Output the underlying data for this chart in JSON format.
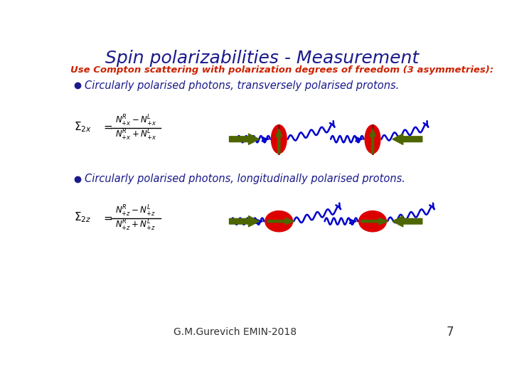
{
  "title": "Spin polarizabilities - Measurement",
  "title_color": "#1a1a8c",
  "subtitle": "Use Compton scattering with polarization degrees of freedom (3 asymmetries):",
  "subtitle_color": "#cc2200",
  "bullet1": "Circularly polarised photons, transversely polarised protons.",
  "bullet2": "Circularly polarised photons, longitudinally polarised protons.",
  "bullet_color": "#1a1a8c",
  "formula_color": "#000000",
  "proton_color": "#dd0000",
  "proton_edge": "#880000",
  "arrow_color": "#4d6600",
  "wave_color": "#0000cc",
  "footer": "G.M.Gurevich EMIN-2018",
  "footer_color": "#333333",
  "page_num": "7",
  "bg_color": "#ffffff",
  "title_fontsize": 18,
  "subtitle_fontsize": 9.5,
  "bullet_fontsize": 10.5,
  "formula_fontsize": 11
}
